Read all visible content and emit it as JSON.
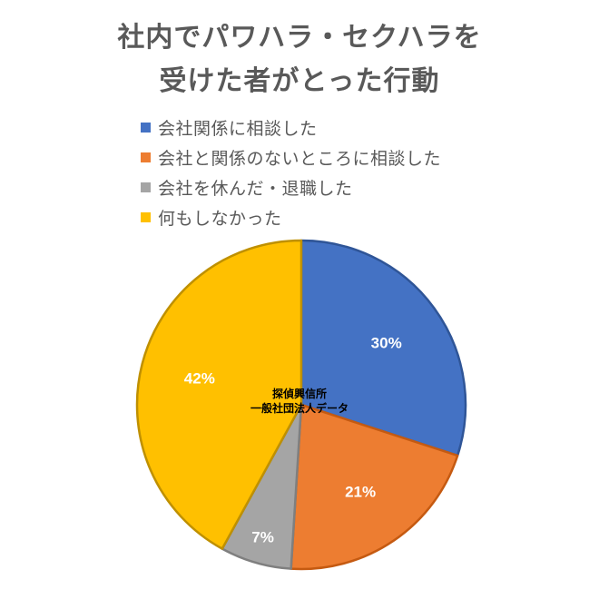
{
  "chart_data": {
    "type": "pie",
    "title_line1": "社内でパワハラ・セクハラを",
    "title_line2": "受けた者がとった行動",
    "categories": [
      "会社関係に相談した",
      "会社と関係のないところに相談した",
      "会社を休んだ・退職した",
      "何もしなかった"
    ],
    "values": [
      30,
      21,
      7,
      42
    ],
    "labels": [
      "30%",
      "21%",
      "7%",
      "42%"
    ],
    "colors": [
      "#4472c4",
      "#ed7d31",
      "#a5a5a5",
      "#ffc000"
    ],
    "legend_position": "top",
    "annotation_line1": "探偵興信所",
    "annotation_line2": "一般社団法人データ"
  }
}
